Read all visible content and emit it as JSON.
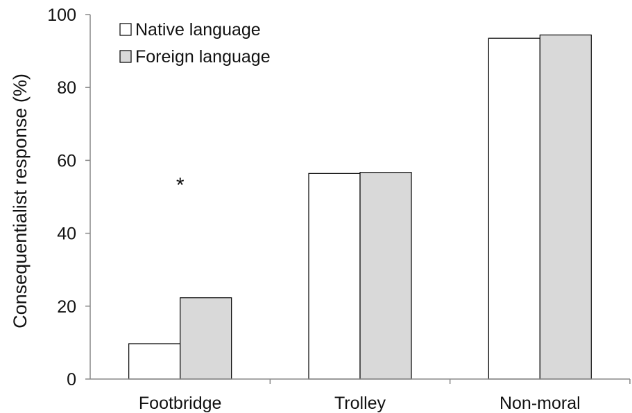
{
  "chart_data": {
    "type": "bar",
    "title": "",
    "xlabel": "",
    "ylabel": "Consequentialist response (%)",
    "categories": [
      "Footbridge",
      "Trolley",
      "Non-moral"
    ],
    "series": [
      {
        "name": "Native language",
        "values": [
          9.7,
          56.4,
          93.5
        ],
        "color": "#ffffff"
      },
      {
        "name": "Foreign language",
        "values": [
          22.3,
          56.7,
          94.4
        ],
        "color": "#d9d9d9"
      }
    ],
    "ylim": [
      0,
      100
    ],
    "yticks": [
      "0",
      "20",
      "40",
      "60",
      "80",
      "100"
    ],
    "grid": false,
    "legend_position": "top-left",
    "annotations": [
      {
        "text": "*",
        "category": "Footbridge",
        "y": 54
      }
    ]
  },
  "colors": {
    "bar_stroke": "#000000",
    "axis": "#888888"
  }
}
